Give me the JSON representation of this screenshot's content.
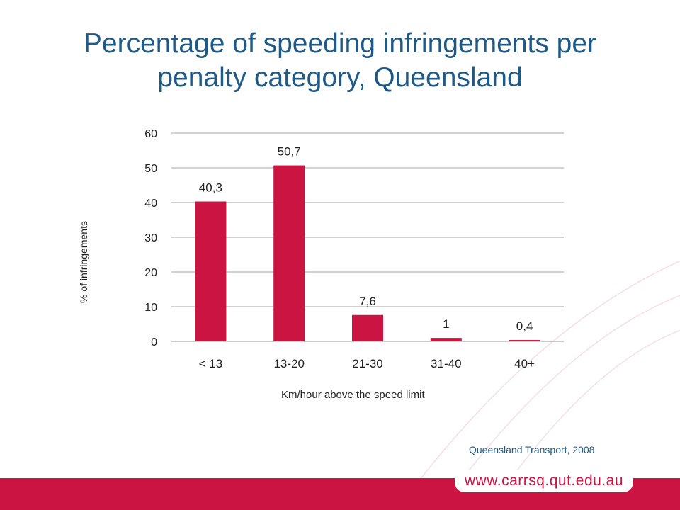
{
  "title_line1": "Percentage of speeding infringements per",
  "title_line2": "penalty category, Queensland",
  "source": "Queensland Transport, 2008",
  "footer_url": "www.carrsq.qut.edu.au",
  "colors": {
    "bar": "#cc1443",
    "title": "#1f5a86",
    "footer": "#cc1443"
  },
  "chart_data": {
    "type": "bar",
    "categories": [
      "< 13",
      "13-20",
      "21-30",
      "31-40",
      "40+"
    ],
    "values": [
      40.3,
      50.7,
      7.6,
      1,
      0.4
    ],
    "value_labels": [
      "40,3",
      "50,7",
      "7,6",
      "1",
      "0,4"
    ],
    "xlabel": "Km/hour above the speed limit",
    "ylabel": "% of infringements",
    "ylim": [
      0,
      60
    ],
    "yticks": [
      0,
      10,
      20,
      30,
      40,
      50,
      60
    ],
    "grid": true,
    "legend": "none"
  }
}
